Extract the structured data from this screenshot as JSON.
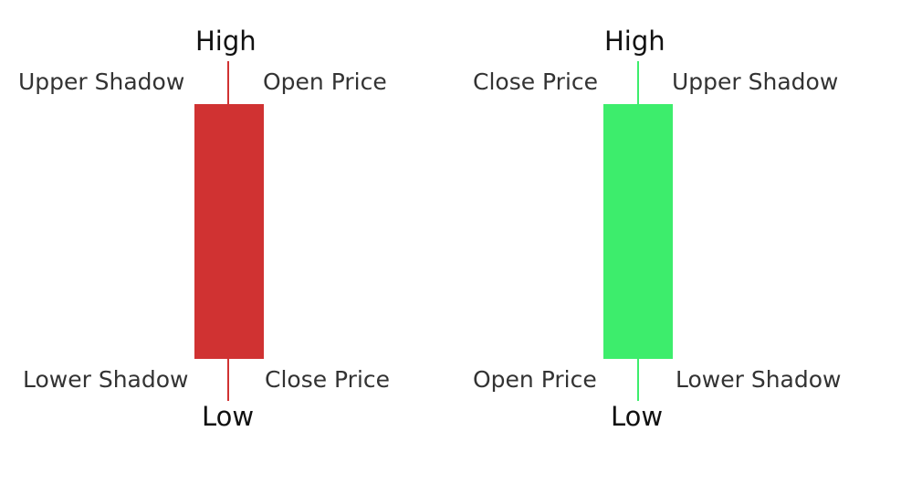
{
  "candles": {
    "bearish": {
      "color": "#d03232",
      "high_label": "High",
      "low_label": "Low",
      "upper_left_label": "Upper Shadow",
      "upper_right_label": "Open Price",
      "lower_left_label": "Lower Shadow",
      "lower_right_label": "Close Price"
    },
    "bullish": {
      "color": "#3ded6c",
      "high_label": "High",
      "low_label": "Low",
      "upper_left_label": "Close Price",
      "upper_right_label": "Upper Shadow",
      "lower_left_label": "Open Price",
      "lower_right_label": "Lower Shadow"
    }
  }
}
